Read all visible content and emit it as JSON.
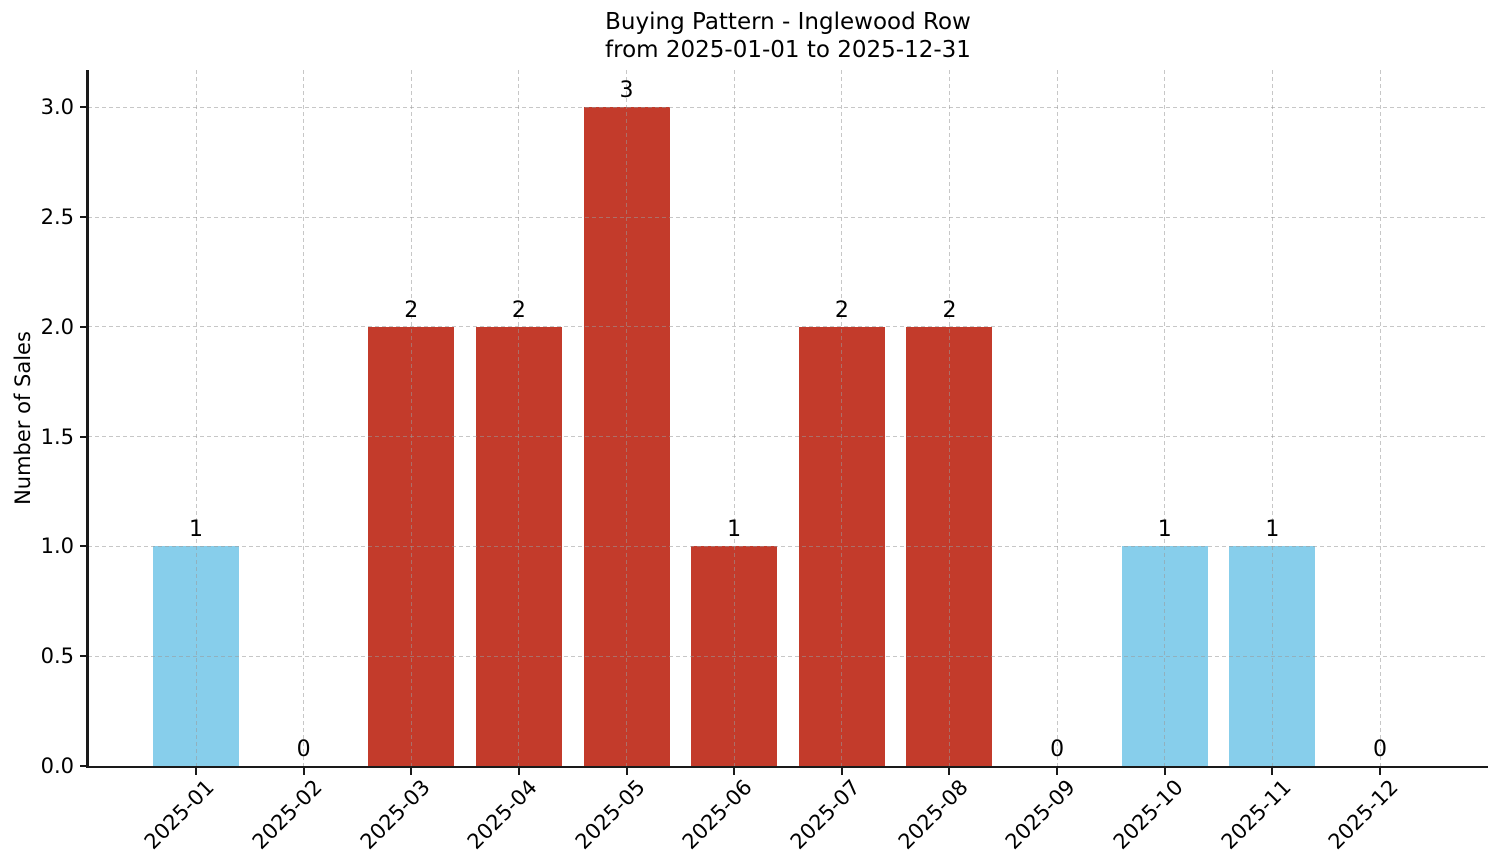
{
  "chart_data": {
    "type": "bar",
    "title": "Buying Pattern - Inglewood Row\nfrom 2025-01-01 to 2025-12-31",
    "title_lines": [
      "Buying Pattern - Inglewood Row",
      "from 2025-01-01 to 2025-12-31"
    ],
    "xlabel": "",
    "ylabel": "Number of Sales",
    "categories": [
      "2025-01",
      "2025-02",
      "2025-03",
      "2025-04",
      "2025-05",
      "2025-06",
      "2025-07",
      "2025-08",
      "2025-09",
      "2025-10",
      "2025-11",
      "2025-12"
    ],
    "values": [
      1,
      0,
      2,
      2,
      3,
      1,
      2,
      2,
      0,
      1,
      1,
      0
    ],
    "value_labels": [
      "1",
      "0",
      "2",
      "2",
      "3",
      "1",
      "2",
      "2",
      "0",
      "1",
      "1",
      "0"
    ],
    "bar_colors": [
      "#87ceeb",
      null,
      "#c33b2b",
      "#c33b2b",
      "#c33b2b",
      "#c33b2b",
      "#c33b2b",
      "#c33b2b",
      null,
      "#87ceeb",
      "#87ceeb",
      null
    ],
    "ytick_labels": [
      "0.0",
      "0.5",
      "1.0",
      "1.5",
      "2.0",
      "2.5",
      "3.0"
    ],
    "ylim": [
      0,
      3.17
    ],
    "grid": true,
    "grid_style": "dashed",
    "legend_position": "none"
  },
  "colors": {
    "bar_blue": "#87ceeb",
    "bar_red": "#c33b2b",
    "grid": "#999999",
    "axis": "#1a1a1a",
    "text": "#000000",
    "background": "#ffffff"
  }
}
